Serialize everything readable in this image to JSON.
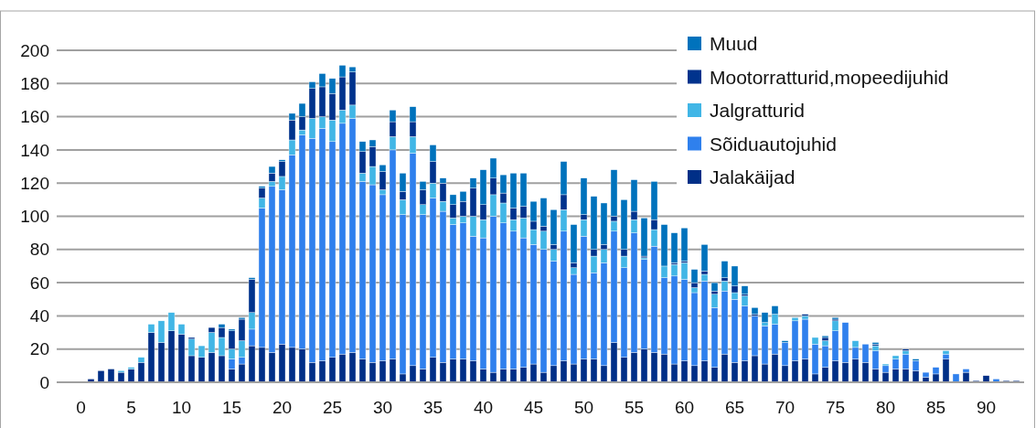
{
  "chart_data": {
    "type": "bar",
    "stacked": true,
    "grid": "y",
    "legend": "top right",
    "categories": [
      "0",
      null,
      null,
      null,
      null,
      "5",
      null,
      null,
      null,
      null,
      "10",
      null,
      null,
      null,
      null,
      "15",
      null,
      null,
      null,
      null,
      "20",
      null,
      null,
      null,
      null,
      "25",
      null,
      null,
      null,
      null,
      "30",
      null,
      null,
      null,
      null,
      "35",
      null,
      null,
      null,
      null,
      "40",
      null,
      null,
      null,
      null,
      "45",
      null,
      null,
      null,
      null,
      "50",
      null,
      null,
      null,
      null,
      "55",
      null,
      null,
      null,
      null,
      "60",
      null,
      null,
      null,
      null,
      "65",
      null,
      null,
      null,
      null,
      "70",
      null,
      null,
      null,
      null,
      "75",
      null,
      null,
      null,
      null,
      "80",
      null,
      null,
      null,
      null,
      "85",
      null,
      null,
      null,
      null,
      "90",
      null,
      null,
      null
    ],
    "ylim": [
      0,
      200
    ],
    "yticks": [
      0,
      20,
      40,
      60,
      80,
      100,
      120,
      140,
      160,
      180,
      200
    ],
    "series": [
      {
        "name": "Jalakäijad",
        "color": "#002f87",
        "values": [
          0,
          2,
          7,
          8,
          6,
          8,
          12,
          30,
          24,
          31,
          29,
          16,
          15,
          18,
          16,
          8,
          11,
          22,
          21,
          18,
          23,
          21,
          20,
          12,
          13,
          15,
          17,
          18,
          14,
          12,
          13,
          14,
          5,
          10,
          8,
          15,
          12,
          14,
          14,
          13,
          8,
          6,
          8,
          8,
          9,
          11,
          6,
          10,
          13,
          11,
          14,
          14,
          10,
          24,
          15,
          18,
          20,
          18,
          17,
          11,
          13,
          10,
          13,
          9,
          17,
          12,
          13,
          16,
          11,
          17,
          10,
          13,
          14,
          5,
          9,
          13,
          12,
          14,
          12,
          8,
          6,
          8,
          8,
          7,
          3,
          5,
          14,
          0,
          6,
          1,
          4,
          0,
          1,
          1
        ]
      },
      {
        "name": "Sõiduautojuhid",
        "color": "#2f80ed",
        "values": [
          0,
          0,
          0,
          0,
          0,
          0,
          0,
          0,
          0,
          0,
          0,
          0,
          0,
          0,
          0,
          6,
          4,
          10,
          84,
          100,
          93,
          116,
          129,
          135,
          140,
          130,
          139,
          141,
          107,
          107,
          100,
          126,
          96,
          128,
          93,
          96,
          91,
          81,
          82,
          75,
          79,
          94,
          88,
          83,
          78,
          72,
          74,
          63,
          78,
          54,
          74,
          52,
          62,
          67,
          54,
          72,
          54,
          64,
          46,
          53,
          49,
          44,
          48,
          36,
          38,
          38,
          33,
          24,
          23,
          18,
          14,
          24,
          24,
          18,
          13,
          18,
          24,
          7,
          11,
          11,
          4,
          6,
          9,
          6,
          3,
          4,
          3,
          5,
          2,
          0,
          0,
          2,
          0,
          0
        ]
      },
      {
        "name": "Jalgratturid",
        "color": "#41b6e6",
        "values": [
          0,
          0,
          0,
          0,
          1,
          1,
          3,
          5,
          13,
          11,
          6,
          10,
          7,
          12,
          11,
          6,
          10,
          10,
          6,
          3,
          8,
          9,
          3,
          12,
          7,
          13,
          8,
          8,
          5,
          11,
          3,
          8,
          9,
          10,
          6,
          9,
          6,
          4,
          4,
          12,
          11,
          13,
          12,
          7,
          12,
          9,
          11,
          7,
          13,
          4,
          10,
          10,
          8,
          6,
          7,
          8,
          1,
          10,
          7,
          7,
          10,
          3,
          4,
          8,
          6,
          4,
          6,
          0,
          2,
          6,
          0,
          2,
          2,
          4,
          3,
          6,
          0,
          4,
          0,
          3,
          1,
          2,
          2,
          0,
          0,
          0,
          2,
          0,
          0,
          0,
          0,
          0,
          0,
          0
        ]
      },
      {
        "name": "Mootorratturid,mopeedijuhid",
        "color": "#00338d",
        "values": [
          0,
          0,
          0,
          0,
          0,
          0,
          0,
          0,
          0,
          0,
          0,
          1,
          0,
          3,
          6,
          11,
          13,
          20,
          6,
          5,
          9,
          12,
          8,
          18,
          18,
          16,
          20,
          20,
          13,
          12,
          11,
          9,
          5,
          9,
          9,
          13,
          11,
          8,
          9,
          17,
          9,
          10,
          6,
          7,
          7,
          5,
          3,
          3,
          9,
          3,
          3,
          4,
          3,
          3,
          4,
          5,
          1,
          6,
          0,
          1,
          1,
          3,
          2,
          2,
          2,
          4,
          1,
          1,
          0,
          0,
          0,
          0,
          1,
          0,
          2,
          1,
          0,
          0,
          0,
          1,
          0,
          0,
          1,
          0,
          0,
          0,
          0,
          0,
          0,
          0,
          0,
          0,
          0,
          0
        ]
      },
      {
        "name": "Muud",
        "color": "#0072bc",
        "values": [
          0,
          0,
          0,
          0,
          0,
          0,
          0,
          0,
          0,
          0,
          0,
          0,
          0,
          0,
          2,
          1,
          1,
          1,
          1,
          4,
          1,
          4,
          8,
          4,
          8,
          9,
          7,
          3,
          6,
          4,
          4,
          7,
          11,
          9,
          5,
          10,
          3,
          6,
          6,
          6,
          21,
          12,
          11,
          21,
          20,
          12,
          17,
          21,
          20,
          23,
          22,
          32,
          25,
          28,
          30,
          19,
          23,
          23,
          25,
          18,
          20,
          8,
          16,
          5,
          10,
          12,
          5,
          4,
          6,
          5,
          1,
          0,
          0,
          0,
          1,
          1,
          0,
          0,
          0,
          1,
          0,
          0,
          0,
          1,
          0,
          0,
          0,
          0,
          0,
          0,
          0,
          0,
          0,
          0
        ]
      }
    ]
  }
}
